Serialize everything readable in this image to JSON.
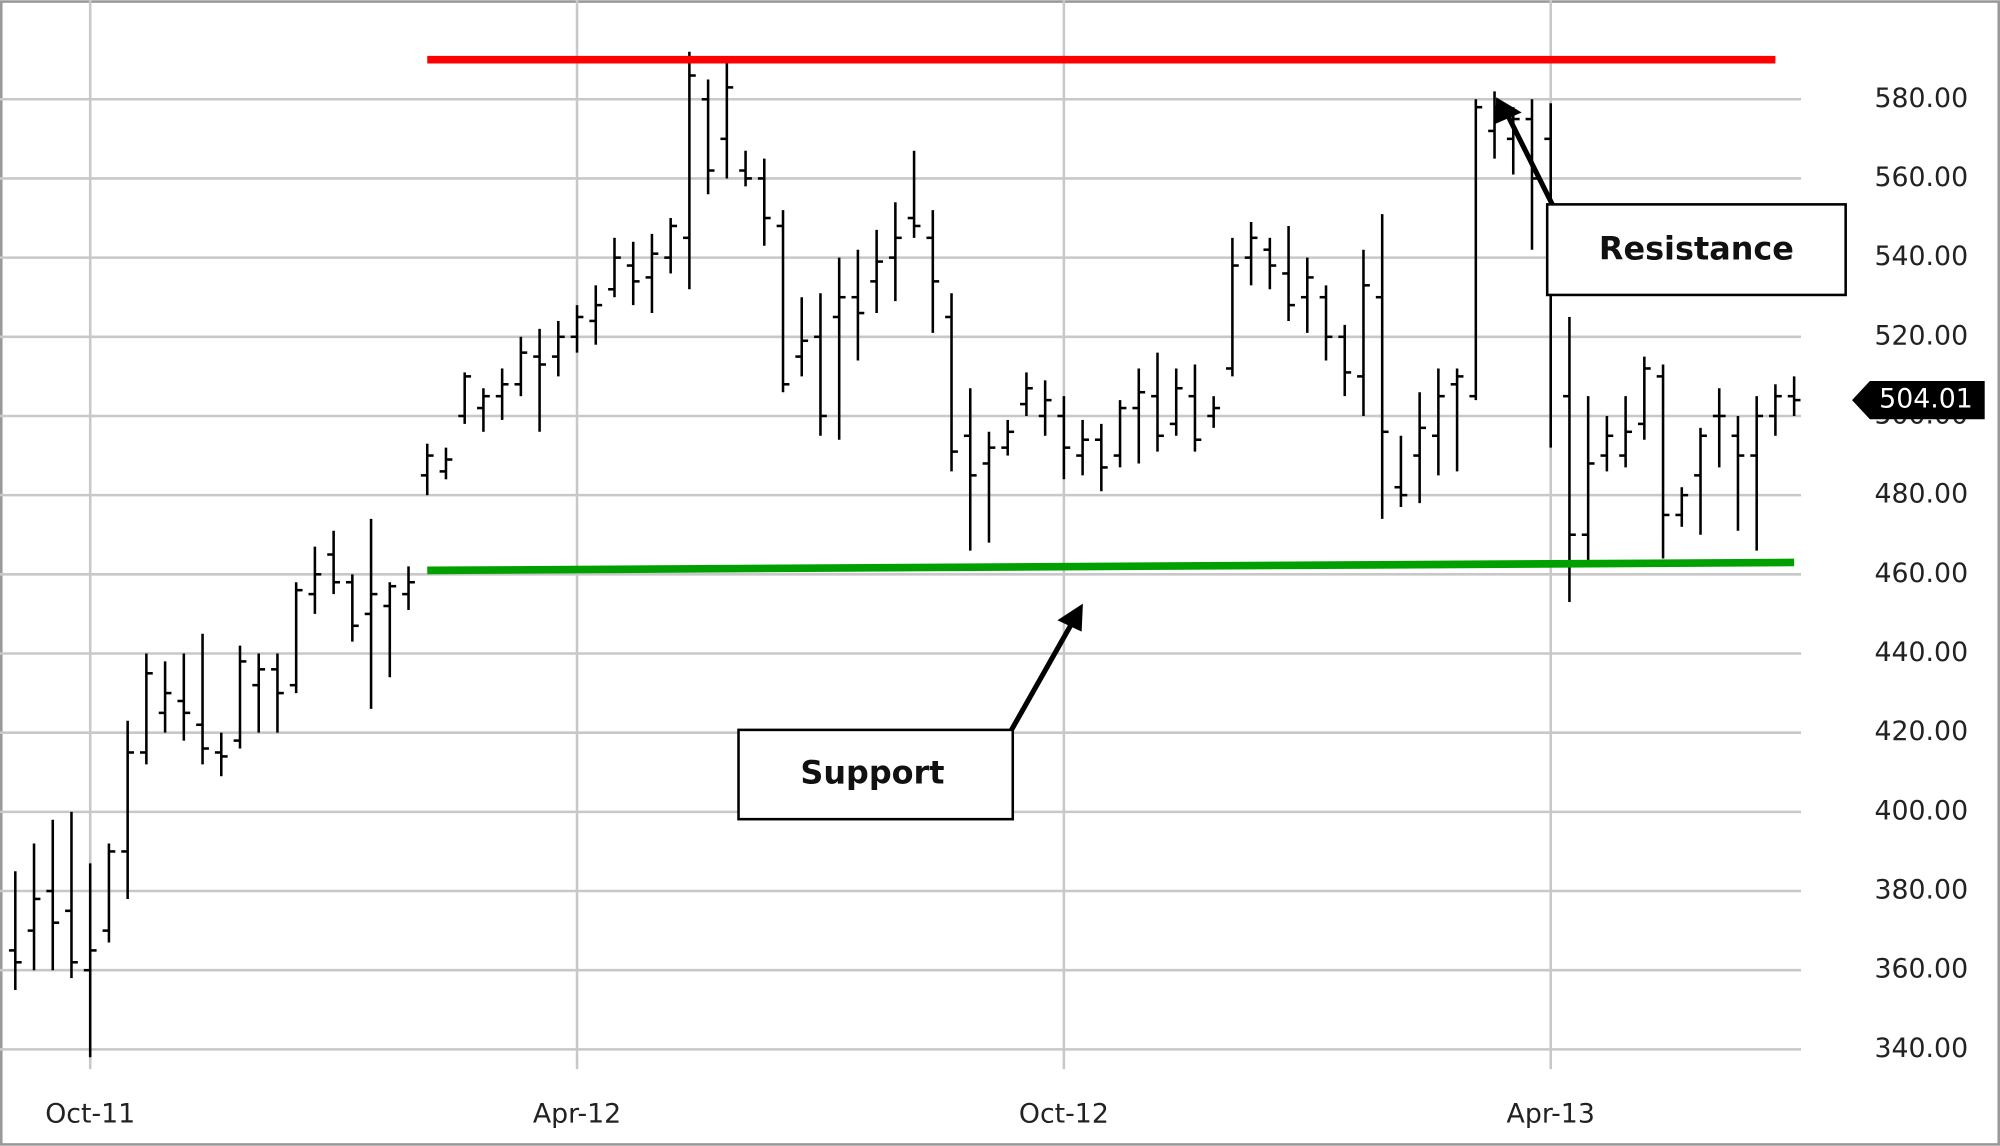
{
  "chart_data": {
    "type": "ohlc",
    "color": "#000000",
    "categories": [
      null,
      null,
      null,
      null,
      "Oct-11",
      null,
      null,
      null,
      null,
      null,
      null,
      null,
      null,
      null,
      null,
      null,
      null,
      null,
      null,
      null,
      null,
      null,
      null,
      null,
      null,
      null,
      null,
      null,
      null,
      null,
      "Apr-12",
      null,
      null,
      null,
      null,
      null,
      null,
      null,
      null,
      null,
      null,
      null,
      null,
      null,
      null,
      null,
      null,
      null,
      null,
      null,
      null,
      null,
      null,
      null,
      null,
      null,
      "Oct-12",
      null,
      null,
      null,
      null,
      null,
      null,
      null,
      null,
      null,
      null,
      null,
      null,
      null,
      null,
      null,
      null,
      null,
      null,
      null,
      null,
      null,
      null,
      null,
      null,
      null,
      "Apr-13",
      null,
      null,
      null,
      null,
      null,
      null,
      null,
      null,
      null,
      null,
      null,
      null,
      null
    ],
    "open": [
      365,
      370,
      380,
      375,
      360,
      370,
      390,
      415,
      425,
      428,
      422,
      415,
      418,
      432,
      436,
      432,
      455,
      465,
      458,
      450,
      452,
      455,
      485,
      486,
      500,
      502,
      505,
      508,
      515,
      515,
      520,
      524,
      532,
      538,
      535,
      540,
      545,
      580,
      570,
      562,
      560,
      548,
      515,
      520,
      525,
      530,
      534,
      540,
      550,
      545,
      525,
      495,
      488,
      492,
      503,
      500,
      500,
      490,
      494,
      490,
      502,
      505,
      498,
      505,
      500,
      512,
      540,
      542,
      536,
      530,
      530,
      520,
      510,
      530,
      482,
      490,
      495,
      508,
      505,
      572,
      570,
      575,
      570,
      505,
      470,
      490,
      490,
      498,
      510,
      475,
      485,
      500,
      495,
      490,
      500,
      505
    ],
    "high": [
      385,
      392,
      398,
      400,
      387,
      392,
      423,
      440,
      438,
      440,
      445,
      420,
      442,
      440,
      440,
      458,
      467,
      471,
      460,
      474,
      458,
      462,
      493,
      492,
      511,
      507,
      512,
      520,
      522,
      524,
      528,
      533,
      545,
      544,
      546,
      550,
      592,
      585,
      590,
      567,
      565,
      552,
      530,
      531,
      540,
      542,
      547,
      554,
      567,
      552,
      531,
      507,
      496,
      499,
      511,
      509,
      505,
      499,
      498,
      504,
      512,
      516,
      512,
      513,
      505,
      545,
      549,
      545,
      548,
      540,
      533,
      523,
      542,
      551,
      495,
      506,
      512,
      512,
      580,
      582,
      578,
      580,
      579,
      525,
      505,
      500,
      505,
      515,
      513,
      482,
      497,
      507,
      500,
      505,
      508,
      510
    ],
    "low": [
      355,
      360,
      360,
      358,
      338,
      367,
      378,
      412,
      420,
      418,
      412,
      409,
      416,
      420,
      420,
      430,
      450,
      455,
      443,
      426,
      434,
      451,
      480,
      484,
      498,
      496,
      499,
      505,
      496,
      510,
      516,
      518,
      530,
      528,
      526,
      536,
      532,
      556,
      560,
      558,
      543,
      506,
      510,
      495,
      494,
      514,
      526,
      529,
      545,
      521,
      486,
      466,
      468,
      490,
      500,
      495,
      484,
      485,
      481,
      487,
      488,
      491,
      495,
      491,
      497,
      510,
      533,
      532,
      524,
      521,
      514,
      505,
      500,
      474,
      477,
      478,
      485,
      486,
      504,
      565,
      561,
      542,
      492,
      453,
      462,
      486,
      487,
      494,
      464,
      472,
      470,
      487,
      471,
      466,
      495,
      500
    ],
    "close": [
      362,
      378,
      372,
      362,
      365,
      390,
      415,
      435,
      430,
      425,
      416,
      414,
      438,
      436,
      430,
      456,
      460,
      458,
      447,
      455,
      457,
      458,
      490,
      489,
      510,
      505,
      508,
      516,
      513,
      520,
      525,
      528,
      540,
      534,
      541,
      548,
      586,
      562,
      583,
      560,
      550,
      508,
      519,
      500,
      530,
      526,
      539,
      545,
      548,
      534,
      491,
      485,
      492,
      496,
      507,
      504,
      492,
      494,
      487,
      502,
      506,
      495,
      507,
      494,
      502,
      538,
      545,
      538,
      528,
      535,
      520,
      511,
      533,
      496,
      480,
      497,
      505,
      510,
      578,
      578,
      575,
      560,
      548,
      470,
      488,
      495,
      496,
      512,
      475,
      480,
      495,
      500,
      490,
      500,
      505,
      504.01
    ],
    "last_price": 504.01,
    "levels": [
      {
        "label": "Resistance",
        "color": "#ff0000",
        "start": 22,
        "end": 94,
        "values": [
          590,
          590
        ]
      },
      {
        "label": "Support",
        "color": "#00a000",
        "start": 22,
        "end": 95,
        "values": [
          461,
          463
        ]
      }
    ],
    "ylim": [
      335,
      605
    ],
    "yticks": [
      {
        "value": 340,
        "label": "340.00"
      },
      {
        "value": 360,
        "label": "360.00"
      },
      {
        "value": 380,
        "label": "380.00"
      },
      {
        "value": 400,
        "label": "400.00"
      },
      {
        "value": 420,
        "label": "420.00"
      },
      {
        "value": 440,
        "label": "440.00"
      },
      {
        "value": 460,
        "label": "460.00"
      },
      {
        "value": 480,
        "label": "480.00"
      },
      {
        "value": 500,
        "label": "500.00"
      },
      {
        "value": 520,
        "label": "520.00"
      },
      {
        "value": 540,
        "label": "540.00"
      },
      {
        "value": 560,
        "label": "560.00"
      },
      {
        "value": 580,
        "label": "580.00"
      }
    ],
    "grid": true
  }
}
